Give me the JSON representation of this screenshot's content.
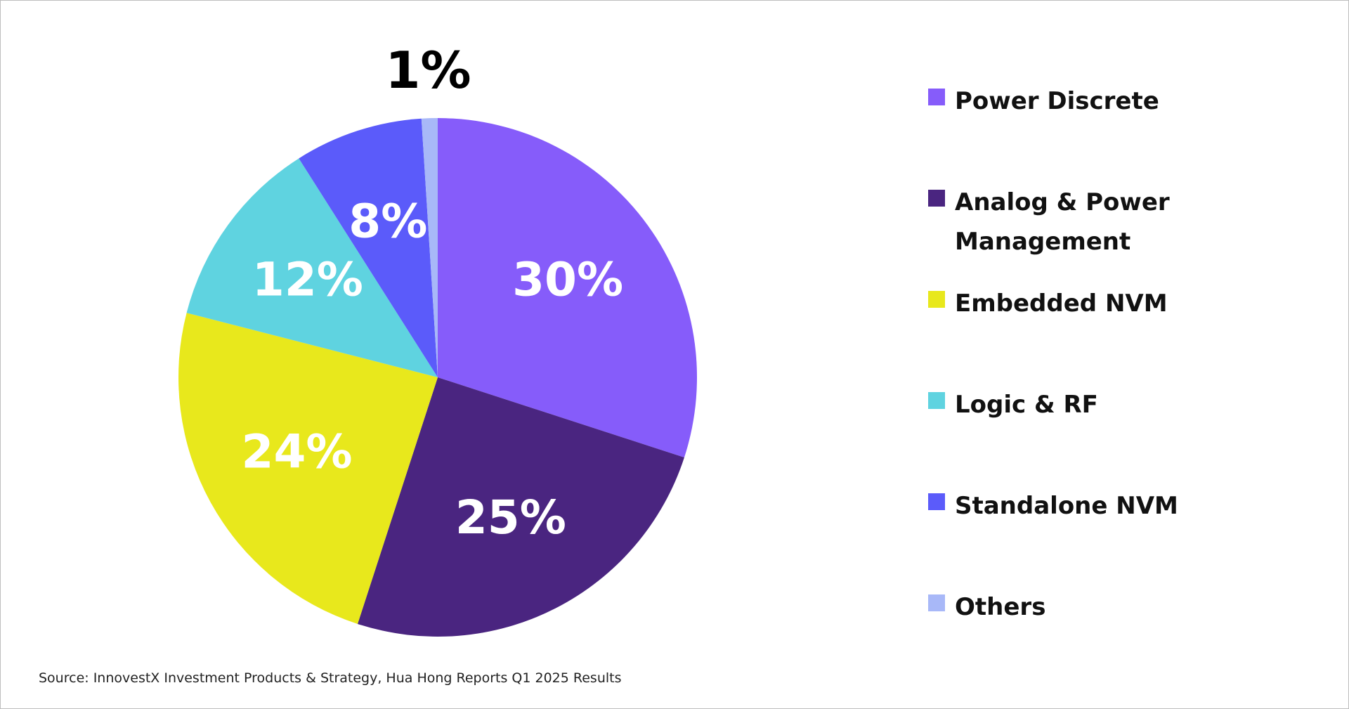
{
  "chart_data": {
    "type": "pie",
    "categories": [
      "Power Discrete",
      "Analog & Power Management",
      "Embedded NVM",
      "Logic & RF",
      "Standalone NVM",
      "Others"
    ],
    "values": [
      30,
      25,
      24,
      12,
      8,
      1
    ],
    "value_labels": [
      "30%",
      "25%",
      "24%",
      "12%",
      "8%",
      "1%"
    ],
    "colors": [
      "#865cfa",
      "#4a2580",
      "#e8e81c",
      "#5fd3e0",
      "#5b5bfa",
      "#a8b8f8"
    ],
    "legend": "right",
    "source": "Source: InnovestX Investment Products & Strategy, Hua Hong Reports Q1 2025 Results"
  }
}
